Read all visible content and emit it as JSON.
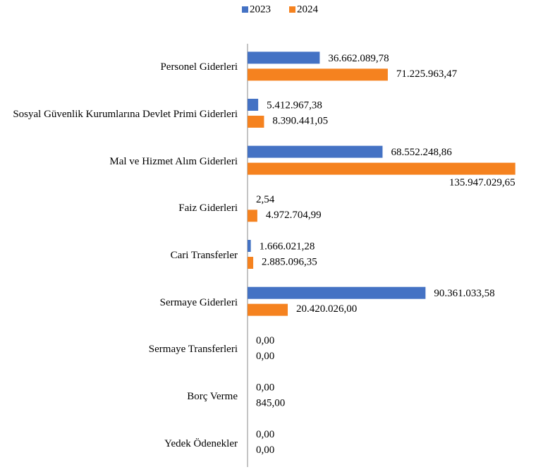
{
  "chart_data": {
    "type": "hbar",
    "categories": [
      "Personel Giderleri",
      "Sosyal Güvenlik Kurumlarına Devlet Primi Giderleri",
      "Mal ve Hizmet Alım Giderleri",
      "Faiz Giderleri",
      "Cari Transferler",
      "Sermaye Giderleri",
      "Sermaye Transferleri",
      "Borç Verme",
      "Yedek Ödenekler"
    ],
    "series": [
      {
        "name": "2023",
        "color": "#4472c4",
        "values": [
          36662089.78,
          5412967.38,
          68552248.86,
          2.54,
          1666021.28,
          90361033.58,
          0,
          0,
          0
        ],
        "value_labels": [
          "36.662.089,78",
          "5.412.967,38",
          "68.552.248,86",
          "2,54",
          "1.666.021,28",
          "90.361.033,58",
          "0,00",
          "0,00",
          "0,00"
        ]
      },
      {
        "name": "2024",
        "color": "#f5821f",
        "values": [
          71225963.47,
          8390441.05,
          135947029.65,
          4972704.99,
          2885096.35,
          20420026.0,
          0,
          845,
          0
        ],
        "value_labels": [
          "71.225.963,47",
          "8.390.441,05",
          "135.947.029,65",
          "4.972.704,99",
          "2.885.096,35",
          "20.420.026,00",
          "0,00",
          "845,00",
          "0,00"
        ]
      }
    ],
    "xlim": [
      0,
      140000000
    ],
    "legend": "top"
  }
}
